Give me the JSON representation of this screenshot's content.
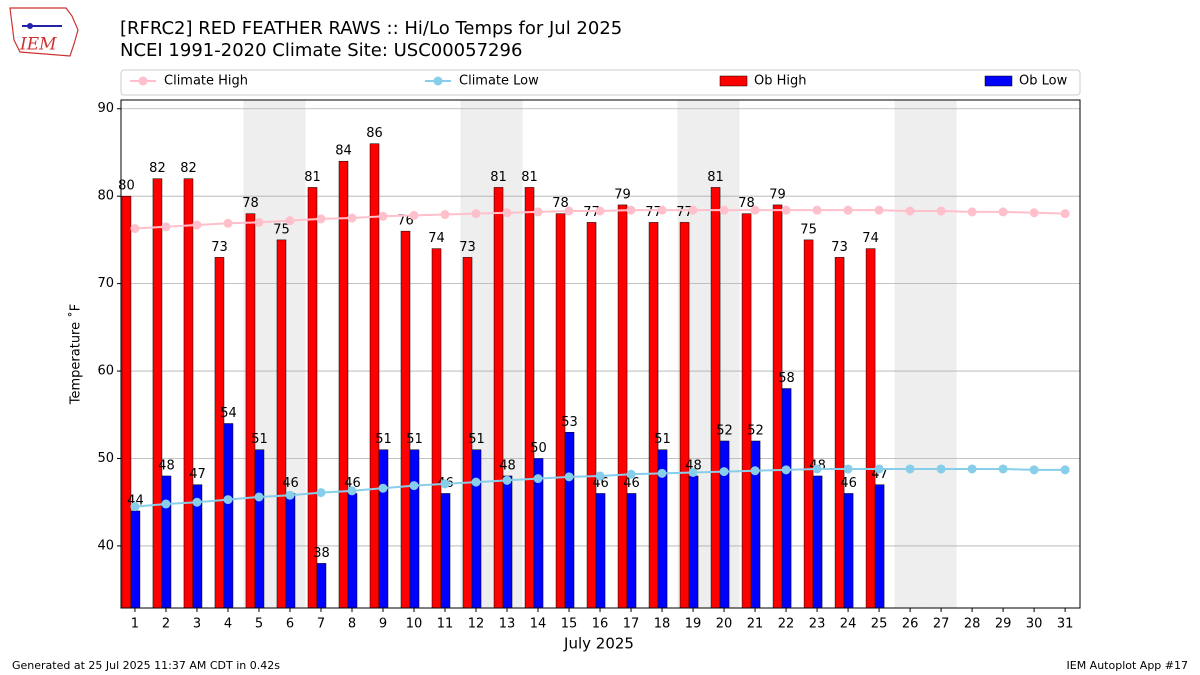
{
  "chart_data": {
    "type": "bar",
    "title": "[RFRC2] RED FEATHER RAWS :: Hi/Lo Temps for Jul 2025",
    "subtitle": "NCEI 1991-2020 Climate Site: USC00057296",
    "logo_text": "IEM",
    "x_label": "July 2025",
    "y_label": "Temperature ˚F",
    "footer_left": "Generated at 25 Jul 2025 11:37 AM CDT in 0.42s",
    "footer_right": "IEM Autoplot App #17",
    "x": [
      1,
      2,
      3,
      4,
      5,
      6,
      7,
      8,
      9,
      10,
      11,
      12,
      13,
      14,
      15,
      16,
      17,
      18,
      19,
      20,
      21,
      22,
      23,
      24,
      25,
      26,
      27,
      28,
      29,
      30,
      31
    ],
    "xticks": [
      1,
      2,
      3,
      4,
      5,
      6,
      7,
      8,
      9,
      10,
      11,
      12,
      13,
      14,
      15,
      16,
      17,
      18,
      19,
      20,
      21,
      22,
      23,
      24,
      25,
      26,
      27,
      28,
      29,
      30,
      31
    ],
    "xlim": [
      0.55,
      31.48
    ],
    "ylim": [
      32.9,
      91
    ],
    "yticks": [
      40,
      50,
      60,
      70,
      80,
      90
    ],
    "grid": true,
    "shaded_days": [
      5,
      6,
      12,
      13,
      19,
      20,
      26,
      27
    ],
    "shade_color": "#eeeeee",
    "series": [
      {
        "name": "Climate High",
        "kind": "line",
        "color": "#ffc0cb",
        "values": [
          76.3,
          76.5,
          76.7,
          76.9,
          77.0,
          77.2,
          77.4,
          77.5,
          77.7,
          77.8,
          77.9,
          78.0,
          78.1,
          78.2,
          78.3,
          78.3,
          78.4,
          78.4,
          78.4,
          78.4,
          78.4,
          78.4,
          78.4,
          78.4,
          78.4,
          78.3,
          78.3,
          78.2,
          78.2,
          78.1,
          78.0
        ]
      },
      {
        "name": "Climate Low",
        "kind": "line",
        "color": "#87ceeb",
        "values": [
          44.5,
          44.8,
          45.0,
          45.3,
          45.6,
          45.8,
          46.1,
          46.3,
          46.6,
          46.9,
          47.1,
          47.3,
          47.5,
          47.7,
          47.9,
          48.0,
          48.2,
          48.3,
          48.4,
          48.5,
          48.6,
          48.7,
          48.8,
          48.8,
          48.8,
          48.8,
          48.8,
          48.8,
          48.8,
          48.7,
          48.7
        ]
      },
      {
        "name": "Ob High",
        "kind": "bar",
        "color": "#ff0000",
        "values": [
          80,
          82,
          82,
          73,
          78,
          75,
          81,
          84,
          86,
          76,
          74,
          73,
          81,
          81,
          78,
          77,
          79,
          77,
          77,
          81,
          78,
          79,
          75,
          73,
          74,
          null,
          null,
          null,
          null,
          null,
          null
        ]
      },
      {
        "name": "Ob Low",
        "kind": "bar",
        "color": "#0000ff",
        "values": [
          44,
          48,
          47,
          54,
          51,
          46,
          38,
          46,
          51,
          51,
          46,
          51,
          48,
          50,
          53,
          46,
          46,
          51,
          48,
          52,
          52,
          58,
          48,
          46,
          47,
          null,
          null,
          null,
          null,
          null,
          null
        ]
      }
    ]
  }
}
